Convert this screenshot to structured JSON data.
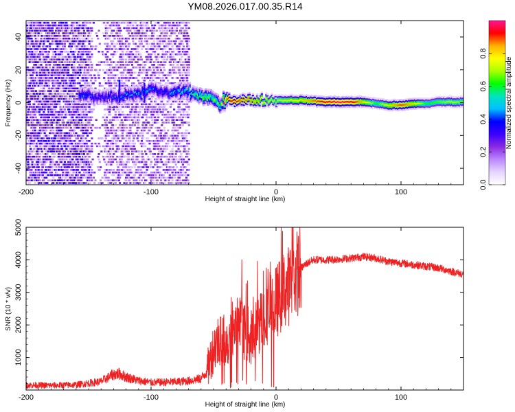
{
  "title": "YM08.2026.017.00.35.R14",
  "chart_data": [
    {
      "type": "heatmap",
      "title": "YM08.2026.017.00.35.R14",
      "xlabel": "Height of straight line (km)",
      "ylabel": "Frequency (Hz)",
      "xlim": [
        -200,
        150
      ],
      "ylim": [
        -50,
        50
      ],
      "xticks": [
        -200,
        -100,
        0,
        100
      ],
      "xtick_labels": [
        "-200",
        "-100",
        "0",
        "100"
      ],
      "yticks": [
        -40,
        -20,
        0,
        20,
        40
      ],
      "ytick_labels": [
        "-40",
        "-20",
        "0",
        "20",
        "40"
      ],
      "colorbar": {
        "label": "Normalized spectral amplitude",
        "range": [
          0,
          1
        ],
        "ticks": [
          0,
          0.2,
          0.4,
          0.6,
          0.8
        ],
        "tick_labels": [
          "0.0",
          "0.2",
          "0.4",
          "0.6",
          "0.8"
        ],
        "colors": [
          "#ffffff",
          "#e6d5ff",
          "#bb88ff",
          "#8a2be2",
          "#3b00ff",
          "#0000ff",
          "#00bfff",
          "#00e5c0",
          "#00ff00",
          "#aaff00",
          "#ffff00",
          "#ffb000",
          "#ff0000",
          "#ff1493"
        ]
      },
      "trace": {
        "x": [
          -155,
          -140,
          -125,
          -110,
          -100,
          -90,
          -80,
          -70,
          -60,
          -50,
          -45,
          -40,
          -35,
          -30,
          -20,
          -10,
          0,
          20,
          40,
          50,
          60,
          70,
          80,
          90,
          100,
          110,
          120,
          130,
          140,
          150
        ],
        "freq": [
          4,
          3,
          4,
          5,
          8,
          5,
          6,
          6,
          4,
          1,
          -2,
          2,
          1,
          1,
          1,
          1,
          1,
          1,
          0,
          0,
          0,
          0,
          -1,
          -2,
          -2,
          -1,
          -1,
          0,
          0,
          0
        ],
        "amplitude": [
          0.4,
          0.35,
          0.4,
          0.45,
          0.4,
          0.35,
          0.45,
          0.5,
          0.6,
          0.65,
          0.6,
          0.9,
          0.95,
          0.9,
          0.85,
          0.75,
          0.7,
          0.8,
          0.95,
          1.0,
          0.95,
          0.8,
          0.6,
          0.8,
          0.9,
          0.8,
          0.6,
          0.65,
          0.7,
          0.65
        ]
      },
      "noise_region_x": [
        -200,
        -70
      ]
    },
    {
      "type": "line",
      "xlabel": "Height of straight line (km)",
      "ylabel": "SNR (10 * v/v)",
      "xlim": [
        -200,
        150
      ],
      "ylim": [
        0,
        5000
      ],
      "xticks": [
        -200,
        -100,
        0,
        100
      ],
      "xtick_labels": [
        "-200",
        "-100",
        "0",
        "100"
      ],
      "yticks": [
        1000,
        2000,
        3000,
        4000,
        5000
      ],
      "ytick_labels": [
        "1000",
        "2000",
        "3000",
        "4000",
        "5000"
      ],
      "line_color": "#ee2222",
      "series": [
        {
          "name": "SNR",
          "x": [
            -200,
            -180,
            -160,
            -140,
            -130,
            -125,
            -120,
            -110,
            -100,
            -90,
            -80,
            -70,
            -60,
            -55,
            -50,
            -45,
            -40,
            -35,
            -30,
            -25,
            -20,
            -15,
            -10,
            -5,
            0,
            5,
            10,
            15,
            20,
            25,
            30,
            40,
            50,
            60,
            70,
            80,
            90,
            100,
            110,
            120,
            130,
            140,
            150
          ],
          "y": [
            150,
            140,
            160,
            260,
            480,
            500,
            400,
            290,
            230,
            240,
            250,
            280,
            350,
            600,
            1300,
            1600,
            1500,
            1700,
            2000,
            1800,
            1600,
            1900,
            2300,
            2500,
            2700,
            3000,
            3200,
            3500,
            3750,
            3900,
            4000,
            4000,
            4020,
            4050,
            4100,
            4050,
            3950,
            3900,
            3850,
            3800,
            3750,
            3650,
            3550
          ]
        }
      ]
    }
  ]
}
